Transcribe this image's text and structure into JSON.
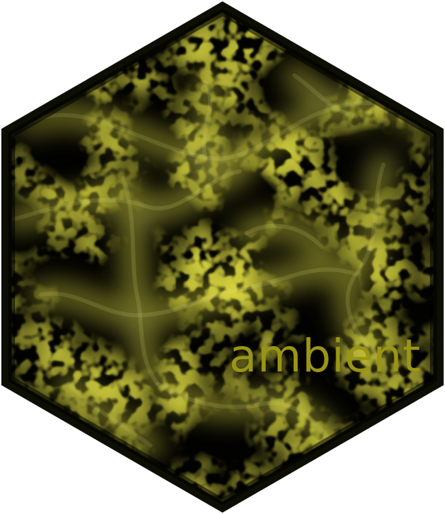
{
  "logo": {
    "title": "ambient",
    "colors": {
      "background": "#020200",
      "border": "#0e0f04",
      "border_inner": "#1c1d08",
      "noise_dark": "#050500",
      "noise_mid": "#3d3d0a",
      "glow": "#d8d640",
      "glow_bright": "#f1ee8c",
      "title": "#9a9514"
    }
  }
}
